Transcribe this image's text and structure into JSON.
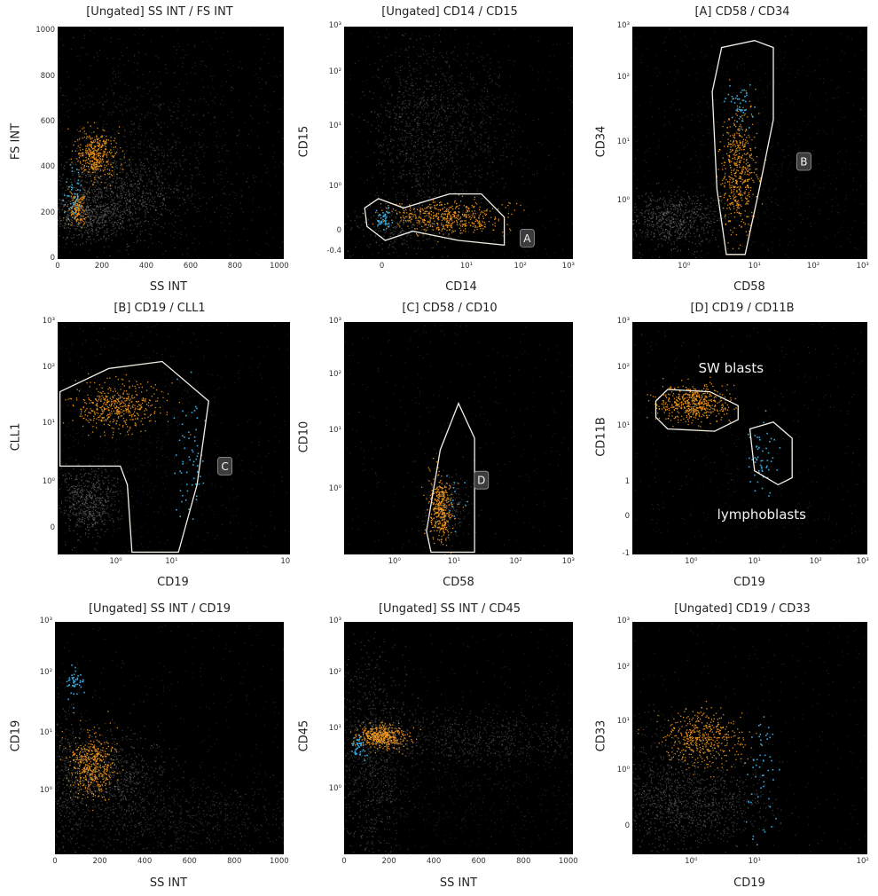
{
  "colors": {
    "background": "#000000",
    "events": "#7a7a7a",
    "population_1": "#f59a1c",
    "population_2": "#35a9e0",
    "gate": "#f3efe4"
  },
  "chart_data": [
    {
      "type": "scatter",
      "title": "[Ungated] SS INT / FS INT",
      "xlabel": "SS INT",
      "ylabel": "FS INT",
      "xscale": "linear",
      "yscale": "linear",
      "xlim": [
        0,
        1020
      ],
      "ylim": [
        0,
        1020
      ],
      "xticks": [
        "0",
        "200",
        "400",
        "600",
        "800",
        "1000"
      ],
      "yticks": [
        "0",
        "200",
        "400",
        "600",
        "800",
        "1000"
      ],
      "populations": [
        {
          "color": "population_1",
          "center": [
            170,
            470
          ],
          "spread": [
            45,
            55
          ]
        },
        {
          "color": "population_1",
          "center": [
            85,
            230
          ],
          "spread": [
            20,
            45
          ]
        },
        {
          "color": "population_2",
          "center": [
            60,
            300
          ],
          "spread": [
            20,
            60
          ]
        }
      ],
      "gates": [],
      "annotations": []
    },
    {
      "type": "scatter",
      "title": "[Ungated] CD14 / CD15",
      "xlabel": "CD14",
      "ylabel": "CD15",
      "xscale": "log",
      "yscale": "log",
      "xticks": [
        "0",
        "10¹",
        "10²",
        "10³"
      ],
      "yticks": [
        "-0.4",
        "0",
        "10⁰",
        "10¹",
        "10²",
        "10³"
      ],
      "populations": [
        {
          "color": "population_1",
          "center": [
            "10¹",
            "0"
          ],
          "description": "orange band"
        },
        {
          "color": "population_2",
          "center": [
            "0",
            "0"
          ],
          "description": "blue cluster"
        }
      ],
      "gates": [
        {
          "name": "A"
        }
      ],
      "annotations": [
        "A"
      ]
    },
    {
      "type": "scatter",
      "title": "[A] CD58 / CD34",
      "xlabel": "CD58",
      "ylabel": "CD34",
      "xscale": "log",
      "yscale": "log",
      "xticks": [
        "10⁰",
        "10¹",
        "10²",
        "10³"
      ],
      "yticks": [
        "10⁰",
        "10¹",
        "10²",
        "10³"
      ],
      "gates": [
        {
          "name": "B"
        }
      ],
      "annotations": [
        "B"
      ]
    },
    {
      "type": "scatter",
      "title": "[B] CD19 / CLL1",
      "xlabel": "CD19",
      "ylabel": "CLL1",
      "xscale": "log",
      "yscale": "log",
      "xticks": [
        "10⁰",
        "10¹",
        "10"
      ],
      "yticks": [
        "0",
        "10⁰",
        "10¹",
        "10²",
        "10³"
      ],
      "gates": [
        {
          "name": "C"
        }
      ],
      "annotations": [
        "C"
      ]
    },
    {
      "type": "scatter",
      "title": "[C] CD58 / CD10",
      "xlabel": "CD58",
      "ylabel": "CD10",
      "xscale": "log",
      "yscale": "log",
      "xticks": [
        "10⁰",
        "10¹",
        "10²",
        "10³"
      ],
      "yticks": [
        "10⁰",
        "10¹",
        "10²",
        "10³"
      ],
      "gates": [
        {
          "name": "D"
        }
      ],
      "annotations": [
        "D"
      ]
    },
    {
      "type": "scatter",
      "title": "[D] CD19 / CD11B",
      "xlabel": "CD19",
      "ylabel": "CD11B",
      "xscale": "log",
      "yscale": "log",
      "xticks": [
        "10⁰",
        "10¹",
        "10²",
        "10³"
      ],
      "yticks": [
        "-1",
        "0",
        "1",
        "10¹",
        "10²",
        "10³"
      ],
      "gates": [
        {
          "name": "SW blasts"
        },
        {
          "name": "lymphoblasts"
        }
      ],
      "annotations": [
        "SW blasts",
        "lymphoblasts"
      ]
    },
    {
      "type": "scatter",
      "title": "[Ungated] SS INT / CD19",
      "xlabel": "SS INT",
      "ylabel": "CD19",
      "xscale": "linear",
      "yscale": "log",
      "xlim": [
        0,
        1020
      ],
      "xticks": [
        "0",
        "200",
        "400",
        "600",
        "800",
        "1000"
      ],
      "yticks": [
        "10⁰",
        "10¹",
        "10²",
        "10³"
      ],
      "gates": [],
      "annotations": []
    },
    {
      "type": "scatter",
      "title": "[Ungated] SS INT / CD45",
      "xlabel": "SS INT",
      "ylabel": "CD45",
      "xscale": "linear",
      "yscale": "log",
      "xlim": [
        0,
        1020
      ],
      "xticks": [
        "0",
        "200",
        "400",
        "600",
        "800",
        "1000"
      ],
      "yticks": [
        "10⁰",
        "10¹",
        "10²",
        "10³"
      ],
      "gates": [],
      "annotations": []
    },
    {
      "type": "scatter",
      "title": "[Ungated] CD19 / CD33",
      "xlabel": "CD19",
      "ylabel": "CD33",
      "xscale": "log",
      "yscale": "log",
      "xticks": [
        "10⁰",
        "10¹",
        "10²"
      ],
      "yticks": [
        "0",
        "10⁰",
        "10¹",
        "10²",
        "10³"
      ],
      "gates": [],
      "annotations": []
    }
  ]
}
